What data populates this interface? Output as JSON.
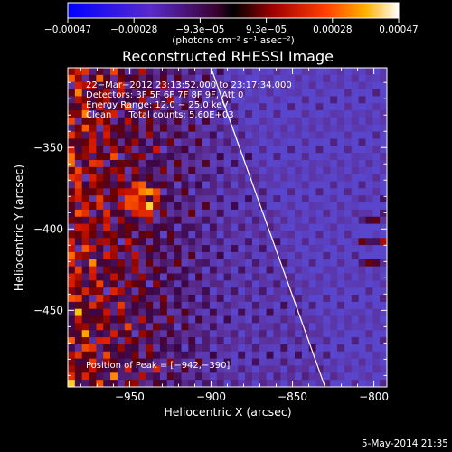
{
  "chart_data": {
    "type": "heatmap",
    "title": "Reconstructed RHESSI Image",
    "xlabel": "Heliocentric X (arcsec)",
    "ylabel": "Heliocentric Y (arcsec)",
    "xlim": [
      -988,
      -792
    ],
    "ylim": [
      -497,
      -301
    ],
    "x_ticks": [
      -950,
      -900,
      -850,
      -800
    ],
    "x_tick_labels": [
      "−950",
      "−900",
      "−850",
      "−800"
    ],
    "y_ticks": [
      -450,
      -400,
      -350
    ],
    "y_tick_labels": [
      "−450",
      "−400",
      "−350"
    ],
    "colorbar": {
      "range": [
        -0.00047,
        0.00047
      ],
      "tick_labels": [
        "−0.00047",
        "−0.00028",
        "−9.3e−05",
        "9.3e−05",
        "0.00028",
        "0.00047"
      ],
      "unit_label": "(photons cm⁻² s⁻¹ asec⁻²)"
    },
    "annotations": [
      "22−Mar−2012 23:13:52.000 to 23:17:34.000",
      "Detectors: 3F 5F 6F 7F 8F 9F, Att 0",
      "Energy Range: 12.0 − 25.0 keV",
      "Clean      Total counts: 5.60E+03"
    ],
    "peak_label": "Position of Peak = [−942,−390]",
    "peak": [
      -942,
      -390
    ],
    "limb_line": [
      [
        -900,
        -301
      ],
      [
        -830,
        -497
      ]
    ],
    "timestamp": "5-May-2014 21:35"
  }
}
